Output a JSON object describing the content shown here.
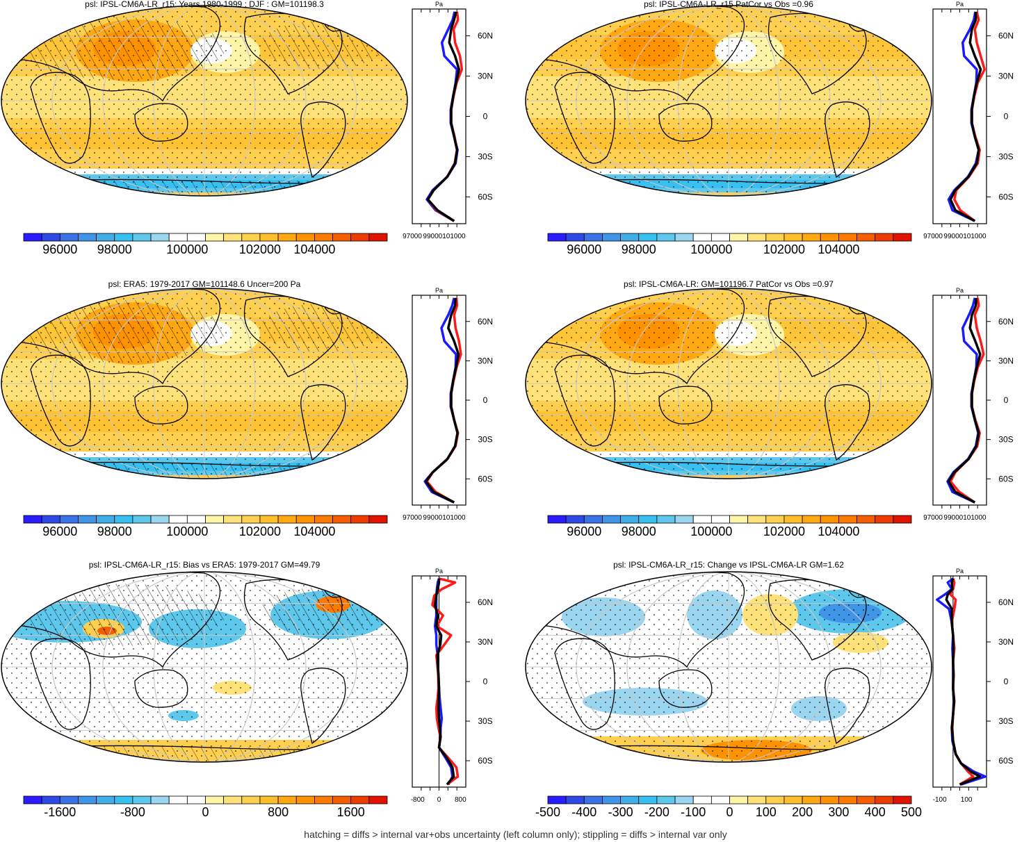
{
  "figure": {
    "footer": "hatching = diffs > internal var+obs uncertainty (left column only); stippling = diffs > internal var only"
  },
  "palettes": {
    "abs": [
      "#2b1cff",
      "#2f49e6",
      "#3a73e6",
      "#3f95e8",
      "#40aee8",
      "#38c0f0",
      "#5ec8ec",
      "#9ad6f0",
      "#ffffff",
      "#ffffff",
      "#fff5a8",
      "#ffe27a",
      "#ffd050",
      "#ffbe2a",
      "#ffa812",
      "#ff9200",
      "#fd7a00",
      "#f45e00",
      "#ee3c00",
      "#e01200"
    ],
    "diff": [
      "#2b1cff",
      "#2f49e6",
      "#3a73e6",
      "#3f95e8",
      "#40aee8",
      "#38c0f0",
      "#5ec8ec",
      "#9ad6f0",
      "#ffffff",
      "#ffffff",
      "#fff5a8",
      "#ffe27a",
      "#ffd050",
      "#ffbe2a",
      "#ffa812",
      "#ff9200",
      "#fd7a00",
      "#f45e00",
      "#ee3c00",
      "#e01200"
    ],
    "profile_colors": {
      "model": "#ff1a1a",
      "reference": "#1a1aff",
      "mean": "#000000"
    }
  },
  "chart_data": [
    {
      "panel": "top-left",
      "type": "heatmap",
      "title": "psl: IPSL-CM6A-LR_r15: Years 1980-1999 : DJF : GM=101198.3",
      "field": "abs",
      "hatching": true,
      "stippling": true,
      "colorbar": {
        "labels": [
          "96000",
          "98000",
          "100000",
          "102000",
          "104000"
        ]
      },
      "profile": {
        "units": "Pa",
        "xlim": [
          97000,
          102500
        ],
        "ylim": [
          -80,
          80
        ],
        "yticks": [
          "60N",
          "30N",
          "0",
          "30S",
          "60S"
        ],
        "xticks": [
          "97000",
          "99000101000"
        ],
        "lat": [
          -78,
          -70,
          -62,
          -55,
          -45,
          -35,
          -25,
          -15,
          -5,
          5,
          15,
          25,
          35,
          45,
          55,
          65,
          72,
          78
        ],
        "model": [
          101300,
          99500,
          98600,
          99200,
          100600,
          101350,
          101600,
          101350,
          101000,
          101000,
          101250,
          101550,
          102100,
          101900,
          101400,
          101250,
          101700,
          101600
        ],
        "reference": [
          101300,
          99400,
          98500,
          99100,
          100600,
          101450,
          101650,
          101300,
          100950,
          100950,
          101200,
          101450,
          101600,
          100300,
          100050,
          100700,
          101150,
          101350
        ],
        "mean": [
          101300,
          99600,
          98600,
          99200,
          100600,
          101400,
          101600,
          101300,
          101000,
          101000,
          101200,
          101500,
          101800,
          101400,
          100800,
          101000,
          101300,
          101500
        ]
      }
    },
    {
      "panel": "top-right",
      "type": "heatmap",
      "title": "psl: IPSL-CM6A-LR_r15 PatCor vs Obs =0.96",
      "field": "abs",
      "hatching": false,
      "stippling": true,
      "colorbar": {
        "labels": [
          "96000",
          "98000",
          "100000",
          "102000",
          "104000"
        ]
      },
      "profile": {
        "units": "Pa",
        "xlim": [
          97000,
          102500
        ],
        "ylim": [
          -80,
          80
        ],
        "yticks": [
          "60N",
          "30N",
          "0",
          "30S",
          "60S"
        ],
        "xticks": [
          "97000",
          "99000101000"
        ],
        "lat": [
          -78,
          -70,
          -62,
          -55,
          -45,
          -35,
          -25,
          -15,
          -5,
          5,
          15,
          25,
          35,
          45,
          55,
          65,
          72,
          78
        ],
        "model": [
          101300,
          99800,
          99200,
          99400,
          100700,
          101600,
          101800,
          101350,
          101000,
          101000,
          101250,
          101600,
          102300,
          101900,
          101500,
          101300,
          101700,
          101500
        ],
        "reference": [
          101300,
          99000,
          98600,
          99200,
          100600,
          101400,
          101700,
          101300,
          100950,
          100950,
          101200,
          101450,
          101500,
          100200,
          100050,
          100800,
          101200,
          101350
        ],
        "mean": [
          101300,
          99300,
          98800,
          99300,
          100650,
          101500,
          101700,
          101300,
          101000,
          101000,
          101200,
          101500,
          101900,
          101300,
          100800,
          101000,
          101400,
          101400
        ]
      }
    },
    {
      "panel": "middle-left",
      "type": "heatmap",
      "title": "psl: ERA5: 1979-2017 GM=101148.6 Uncer=200 Pa",
      "field": "abs",
      "hatching": true,
      "stippling": true,
      "colorbar": {
        "labels": [
          "96000",
          "98000",
          "100000",
          "102000",
          "104000"
        ]
      },
      "profile": {
        "units": "Pa",
        "xlim": [
          97000,
          102500
        ],
        "ylim": [
          -80,
          80
        ],
        "yticks": [
          "60N",
          "30N",
          "0",
          "30S",
          "60S"
        ],
        "xticks": [
          "97000",
          "99000101000"
        ],
        "lat": [
          -78,
          -70,
          -62,
          -55,
          -45,
          -35,
          -25,
          -15,
          -5,
          5,
          15,
          25,
          35,
          45,
          55,
          65,
          72,
          78
        ],
        "model": [
          101300,
          99400,
          98500,
          99100,
          100600,
          101450,
          101700,
          101300,
          101000,
          101000,
          101250,
          101550,
          102000,
          101800,
          101450,
          101300,
          101600,
          101550
        ],
        "reference": [
          101300,
          99000,
          98300,
          99100,
          100600,
          101400,
          101650,
          101300,
          100950,
          100950,
          101200,
          101450,
          101500,
          100300,
          100000,
          100700,
          101100,
          101300
        ],
        "mean": [
          101300,
          99200,
          98400,
          99100,
          100600,
          101400,
          101650,
          101300,
          101000,
          101000,
          101200,
          101500,
          101750,
          101300,
          100700,
          101000,
          101400,
          101450
        ]
      }
    },
    {
      "panel": "middle-right",
      "type": "heatmap",
      "title": "psl: IPSL-CM6A-LR: GM=101196.7 PatCor vs Obs =0.97",
      "field": "abs",
      "hatching": false,
      "stippling": true,
      "colorbar": {
        "labels": [
          "96000",
          "98000",
          "100000",
          "102000",
          "104000"
        ]
      },
      "profile": {
        "units": "Pa",
        "xlim": [
          97000,
          102500
        ],
        "ylim": [
          -80,
          80
        ],
        "yticks": [
          "60N",
          "30N",
          "0",
          "30S",
          "60S"
        ],
        "xticks": [
          "97000",
          "99000101000"
        ],
        "lat": [
          -78,
          -70,
          -62,
          -55,
          -45,
          -35,
          -25,
          -15,
          -5,
          5,
          15,
          25,
          35,
          45,
          55,
          65,
          72,
          78
        ],
        "model": [
          101300,
          99700,
          98800,
          99300,
          100650,
          101550,
          101800,
          101350,
          101000,
          101000,
          101250,
          101600,
          102200,
          101900,
          101500,
          101300,
          101700,
          101600
        ],
        "reference": [
          101300,
          99000,
          98500,
          99100,
          100600,
          101400,
          101650,
          101300,
          100950,
          100950,
          101200,
          101450,
          101500,
          100200,
          100050,
          100700,
          101100,
          101300
        ],
        "mean": [
          101300,
          99300,
          98600,
          99200,
          100650,
          101450,
          101700,
          101300,
          101000,
          101000,
          101200,
          101500,
          101850,
          101350,
          100800,
          101000,
          101400,
          101450
        ]
      }
    },
    {
      "panel": "bottom-left",
      "type": "heatmap",
      "title": "psl: IPSL-CM6A-LR_r15: Bias vs ERA5: 1979-2017 GM=49.79",
      "field": "diff",
      "hatching": true,
      "stippling": true,
      "colorbar": {
        "labels": [
          "-1600",
          "-800",
          "0",
          "800",
          "1600"
        ]
      },
      "profile": {
        "units": "Pa",
        "xlim": [
          -1000,
          1000
        ],
        "ylim": [
          -80,
          80
        ],
        "yticks": [
          "60N",
          "30N",
          "0",
          "30S",
          "60S"
        ],
        "xticks": [
          "-800",
          "0",
          "800"
        ],
        "lat": [
          -78,
          -72,
          -65,
          -58,
          -50,
          -42,
          -35,
          -28,
          -20,
          -12,
          -5,
          5,
          12,
          20,
          28,
          35,
          42,
          50,
          58,
          65,
          70,
          75,
          78
        ],
        "model": [
          300,
          700,
          650,
          350,
          0,
          50,
          -20,
          -80,
          -100,
          -50,
          -20,
          -30,
          -60,
          -100,
          200,
          450,
          -80,
          150,
          -250,
          -180,
          100,
          600,
          0
        ],
        "reference": [
          350,
          500,
          450,
          250,
          0,
          50,
          60,
          100,
          60,
          20,
          0,
          -20,
          -60,
          -50,
          -100,
          -100,
          -150,
          -100,
          -100,
          -100,
          -80,
          -50,
          0
        ],
        "mean": [
          300,
          550,
          500,
          300,
          0,
          60,
          30,
          0,
          -20,
          -10,
          0,
          -20,
          -40,
          -60,
          50,
          80,
          -100,
          -50,
          -150,
          -100,
          -50,
          0,
          0
        ]
      }
    },
    {
      "panel": "bottom-right",
      "type": "heatmap",
      "title": "psl: IPSL-CM6A-LR_r15: Change vs IPSL-CM6A-LR GM=1.62",
      "field": "diff",
      "hatching": false,
      "stippling": true,
      "colorbar": {
        "labels": [
          "-500",
          "-400",
          "-300",
          "-200",
          "-100",
          "0",
          "100",
          "200",
          "300",
          "400",
          "500"
        ]
      },
      "profile": {
        "units": "Pa",
        "xlim": [
          -150,
          250
        ],
        "ylim": [
          -80,
          80
        ],
        "yticks": [
          "60N",
          "30N",
          "0",
          "30S",
          "60S"
        ],
        "xticks": [
          "-100",
          "100"
        ],
        "lat": [
          -78,
          -72,
          -68,
          -62,
          -55,
          -45,
          -35,
          -25,
          -15,
          -5,
          5,
          15,
          25,
          35,
          45,
          55,
          62,
          66,
          70,
          75,
          78
        ],
        "model": [
          50,
          150,
          110,
          60,
          20,
          0,
          -5,
          0,
          10,
          0,
          5,
          0,
          10,
          0,
          -10,
          10,
          20,
          -20,
          0,
          10,
          0
        ],
        "reference": [
          60,
          240,
          150,
          60,
          20,
          -5,
          -10,
          0,
          5,
          0,
          0,
          0,
          -5,
          0,
          -10,
          -30,
          -120,
          -60,
          -10,
          -40,
          0
        ],
        "mean": [
          50,
          200,
          130,
          60,
          20,
          0,
          -8,
          0,
          8,
          0,
          3,
          0,
          3,
          0,
          -10,
          -10,
          -50,
          -40,
          -5,
          -10,
          0
        ]
      }
    }
  ]
}
